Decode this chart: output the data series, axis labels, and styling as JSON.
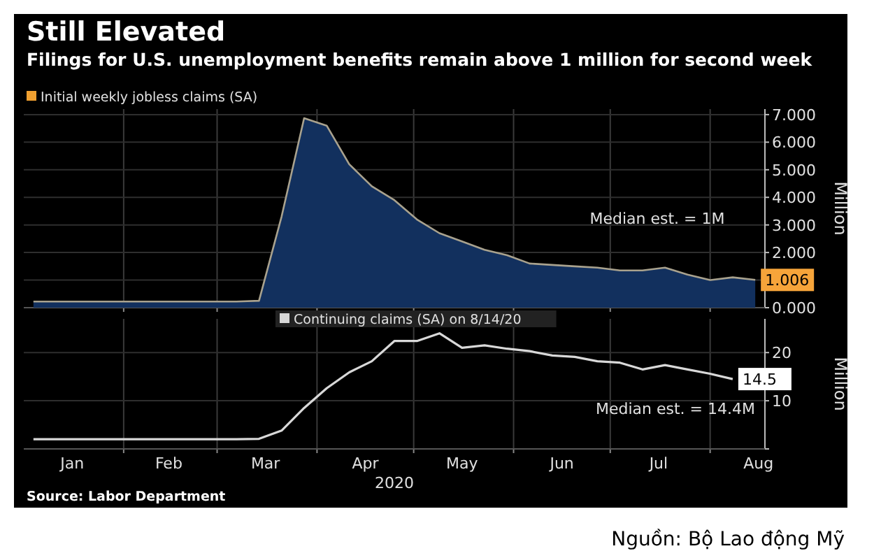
{
  "chart_data": [
    {
      "type": "area",
      "title": "Still Elevated",
      "subtitle": "Filings for U.S. unemployment benefits remain above 1 million for second week",
      "ylabel": "Million",
      "x": [
        "2020-01-04",
        "2020-01-11",
        "2020-01-18",
        "2020-01-25",
        "2020-02-01",
        "2020-02-08",
        "2020-02-15",
        "2020-02-22",
        "2020-02-29",
        "2020-03-07",
        "2020-03-14",
        "2020-03-21",
        "2020-03-28",
        "2020-04-04",
        "2020-04-11",
        "2020-04-18",
        "2020-04-25",
        "2020-05-02",
        "2020-05-09",
        "2020-05-16",
        "2020-05-23",
        "2020-05-30",
        "2020-06-06",
        "2020-06-13",
        "2020-06-20",
        "2020-06-27",
        "2020-07-04",
        "2020-07-11",
        "2020-07-18",
        "2020-07-25",
        "2020-08-01",
        "2020-08-08",
        "2020-08-15"
      ],
      "series": [
        {
          "name": "Initial weekly jobless claims (SA)",
          "color": "#12305e",
          "values": [
            0.22,
            0.22,
            0.22,
            0.22,
            0.22,
            0.22,
            0.22,
            0.22,
            0.22,
            0.22,
            0.25,
            3.3,
            6.87,
            6.6,
            5.2,
            4.4,
            3.9,
            3.2,
            2.7,
            2.4,
            2.1,
            1.9,
            1.6,
            1.55,
            1.5,
            1.45,
            1.35,
            1.35,
            1.45,
            1.2,
            1.0,
            1.1,
            1.006
          ],
          "value_labels": [
            null,
            null,
            null,
            null,
            null,
            null,
            null,
            null,
            null,
            null,
            null,
            null,
            null,
            null,
            null,
            null,
            null,
            null,
            null,
            null,
            null,
            null,
            null,
            null,
            null,
            null,
            null,
            null,
            null,
            null,
            null,
            null,
            "1.006"
          ]
        }
      ],
      "xlim": [
        "2020-01-01",
        "2020-08-18"
      ],
      "xticks": [
        {
          "value": "2020-02-01",
          "label": null
        },
        {
          "value": "2020-03-01",
          "label": null
        },
        {
          "value": "2020-04-01",
          "label": null
        },
        {
          "value": "2020-05-01",
          "label": null
        },
        {
          "value": "2020-06-01",
          "label": null
        },
        {
          "value": "2020-07-01",
          "label": null
        },
        {
          "value": "2020-08-01",
          "label": null
        }
      ],
      "ylim": [
        0,
        7.2
      ],
      "yticks": [
        {
          "value": 0,
          "label": "0.000"
        },
        {
          "value": 1,
          "label": null
        },
        {
          "value": 2,
          "label": "2.000"
        },
        {
          "value": 3,
          "label": "3.000"
        },
        {
          "value": 4,
          "label": "4.000"
        },
        {
          "value": 5,
          "label": "5.000"
        },
        {
          "value": 6,
          "label": "6.000"
        },
        {
          "value": 7,
          "label": "7.000"
        }
      ],
      "grid": true,
      "legend": "top left",
      "tick_labels": "y",
      "annotations": [
        "Median est. = 1M"
      ]
    },
    {
      "type": "line",
      "xlabel": "2020",
      "ylabel": "Million",
      "x": [
        "2020-01-04",
        "2020-01-11",
        "2020-01-18",
        "2020-01-25",
        "2020-02-01",
        "2020-02-08",
        "2020-02-15",
        "2020-02-22",
        "2020-02-29",
        "2020-03-07",
        "2020-03-14",
        "2020-03-21",
        "2020-03-28",
        "2020-04-04",
        "2020-04-11",
        "2020-04-18",
        "2020-04-25",
        "2020-05-02",
        "2020-05-09",
        "2020-05-16",
        "2020-05-23",
        "2020-05-30",
        "2020-06-06",
        "2020-06-13",
        "2020-06-20",
        "2020-06-27",
        "2020-07-04",
        "2020-07-11",
        "2020-07-18",
        "2020-07-25",
        "2020-08-01",
        "2020-08-08"
      ],
      "series": [
        {
          "name": "Continuing claims (SA) on 8/14/20",
          "color": "#d8d8d8",
          "values": [
            2.0,
            2.0,
            2.0,
            2.0,
            2.0,
            2.0,
            2.0,
            2.0,
            2.0,
            2.0,
            2.1,
            3.8,
            8.5,
            12.6,
            15.9,
            18.2,
            22.4,
            22.4,
            24,
            21,
            21.5,
            20.8,
            20.3,
            19.4,
            19.1,
            18.2,
            17.9,
            16.5,
            17.4,
            16.5,
            15.6,
            14.5
          ],
          "value_labels": [
            null,
            null,
            null,
            null,
            null,
            null,
            null,
            null,
            null,
            null,
            null,
            null,
            null,
            null,
            null,
            null,
            null,
            null,
            null,
            null,
            null,
            null,
            null,
            null,
            null,
            null,
            null,
            null,
            null,
            null,
            null,
            "14.5"
          ]
        }
      ],
      "xlim": [
        "2020-01-01",
        "2020-08-18"
      ],
      "xticks": [
        {
          "value": "2020-01-16",
          "label": "Jan"
        },
        {
          "value": "2020-02-01",
          "label": null
        },
        {
          "value": "2020-02-15",
          "label": "Feb"
        },
        {
          "value": "2020-03-01",
          "label": null
        },
        {
          "value": "2020-03-16",
          "label": "Mar"
        },
        {
          "value": "2020-04-01",
          "label": null
        },
        {
          "value": "2020-04-16",
          "label": "Apr"
        },
        {
          "value": "2020-05-01",
          "label": null
        },
        {
          "value": "2020-05-16",
          "label": "May"
        },
        {
          "value": "2020-06-01",
          "label": null
        },
        {
          "value": "2020-06-16",
          "label": "Jun"
        },
        {
          "value": "2020-07-01",
          "label": null
        },
        {
          "value": "2020-07-16",
          "label": "Jul"
        },
        {
          "value": "2020-08-01",
          "label": null
        },
        {
          "value": "2020-08-16",
          "label": "Aug"
        }
      ],
      "ylim": [
        0,
        27
      ],
      "yticks": [
        {
          "value": 0,
          "label": null
        },
        10,
        20
      ],
      "grid": true,
      "legend": "top",
      "annotations": [
        "Median est. = 14.4M",
        "Source: Labor Department",
        "Nguồn: Bộ Lao động Mỹ"
      ]
    }
  ]
}
